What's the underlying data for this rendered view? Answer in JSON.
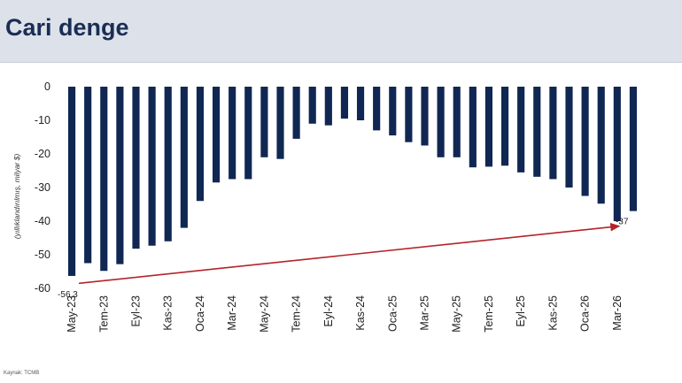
{
  "header": {
    "title": "Cari denge"
  },
  "footer": {
    "source": "Kaynak: TCMB"
  },
  "chart_data": {
    "type": "bar",
    "ylabel": "(yıllıklandırılmış, milyar $)",
    "ylim": [
      -60,
      0
    ],
    "yticks": [
      0,
      -10,
      -20,
      -30,
      -40,
      -50,
      -60
    ],
    "x_tick_labels": [
      "May-23",
      "Tem-23",
      "Eyl-23",
      "Kas-23",
      "Oca-24",
      "Mar-24",
      "May-24",
      "Tem-24",
      "Eyl-24",
      "Kas-24",
      "Oca-25",
      "Mar-25",
      "May-25",
      "Tem-25",
      "Eyl-25",
      "Kas-25",
      "Oca-26",
      "Mar-26"
    ],
    "categories": [
      "May-23",
      "Haz-23",
      "Tem-23",
      "Ağu-23",
      "Eyl-23",
      "Eki-23",
      "Kas-23",
      "Ara-23",
      "Oca-24",
      "Şub-24",
      "Mar-24",
      "Nis-24",
      "May-24",
      "Haz-24",
      "Tem-24",
      "Ağu-24",
      "Eyl-24",
      "Eki-24",
      "Kas-24",
      "Ara-24",
      "Oca-25",
      "Şub-25",
      "Mar-25",
      "Nis-25",
      "May-25",
      "Haz-25",
      "Tem-25",
      "Ağu-25",
      "Eyl-25",
      "Eki-25",
      "Kas-25",
      "Ara-25",
      "Oca-26",
      "Şub-26",
      "Mar-26",
      "Nis-26"
    ],
    "values": [
      -56.3,
      -52.5,
      -54.8,
      -52.8,
      -48.2,
      -47.3,
      -46.0,
      -42.0,
      -34.0,
      -28.5,
      -27.5,
      -27.5,
      -21.0,
      -21.5,
      -15.5,
      -11.0,
      -11.5,
      -9.5,
      -10.0,
      -13.0,
      -14.5,
      -16.5,
      -17.5,
      -21.0,
      -21.0,
      -24.0,
      -23.8,
      -23.5,
      -25.5,
      -26.8,
      -27.5,
      -30.0,
      -32.5,
      -34.8,
      -40.0,
      -37.0
    ],
    "annotations": [
      {
        "text": "-56,3",
        "category": "May-23",
        "value": -56.3
      },
      {
        "text": "-37",
        "category": "Nis-26",
        "value": -37
      }
    ],
    "trend_line": {
      "from": {
        "category": "May-23",
        "value": -58.5
      },
      "to": {
        "category": "Mar-26",
        "value": -41.5
      },
      "color": "#b5232a"
    },
    "bar_color": "#0f2752",
    "grid": false
  }
}
